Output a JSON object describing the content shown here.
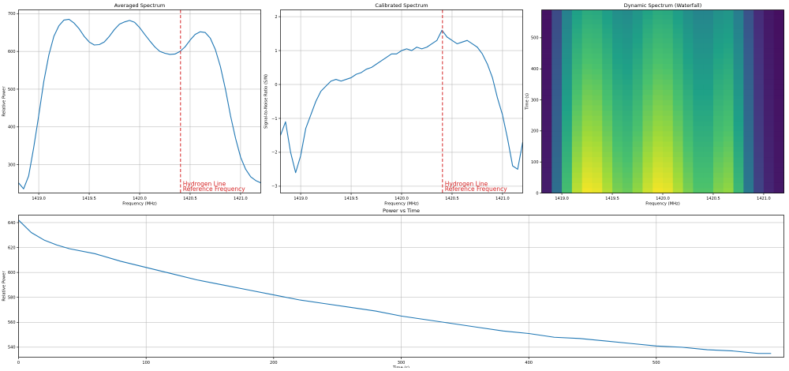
{
  "figure": {
    "background": "#ffffff",
    "line_color": "#1f77b4",
    "ref_color": "#d62728",
    "grid_color": "#b0b0b0"
  },
  "chart_data": [
    {
      "id": "avg",
      "type": "line",
      "title": "Averaged Spectrum",
      "xlabel": "Frequency (MHz)",
      "ylabel": "Relative Power",
      "xlim": [
        1418.8,
        1421.2
      ],
      "ylim": [
        225,
        710
      ],
      "xticks": [
        1419.0,
        1419.5,
        1420.0,
        1420.5,
        1421.0
      ],
      "xtick_labels": [
        "1419.0",
        "1419.5",
        "1420.0",
        "1420.5",
        "1421.0"
      ],
      "yticks": [
        300,
        400,
        500,
        600,
        700
      ],
      "ytick_labels": [
        "300",
        "400",
        "500",
        "600",
        "700"
      ],
      "grid": true,
      "ref_line": {
        "x": 1420.405,
        "label_line1": "Hydrogen Line",
        "label_line2": "Reference Frequency"
      },
      "series": [
        {
          "x": [
            1418.8,
            1418.85,
            1418.9,
            1418.95,
            1419.0,
            1419.05,
            1419.1,
            1419.15,
            1419.2,
            1419.25,
            1419.3,
            1419.35,
            1419.4,
            1419.45,
            1419.5,
            1419.55,
            1419.6,
            1419.65,
            1419.7,
            1419.75,
            1419.8,
            1419.85,
            1419.9,
            1419.95,
            1420.0,
            1420.05,
            1420.1,
            1420.15,
            1420.2,
            1420.25,
            1420.3,
            1420.35,
            1420.4,
            1420.45,
            1420.5,
            1420.55,
            1420.6,
            1420.65,
            1420.7,
            1420.75,
            1420.8,
            1420.85,
            1420.9,
            1420.95,
            1421.0,
            1421.05,
            1421.1,
            1421.15,
            1421.2
          ],
          "y": [
            252,
            236,
            270,
            345,
            430,
            520,
            590,
            640,
            668,
            683,
            685,
            675,
            660,
            640,
            625,
            617,
            618,
            625,
            640,
            658,
            672,
            678,
            682,
            677,
            663,
            645,
            628,
            612,
            600,
            595,
            592,
            593,
            600,
            612,
            630,
            645,
            652,
            650,
            635,
            605,
            560,
            500,
            430,
            370,
            320,
            288,
            268,
            258,
            252
          ]
        }
      ]
    },
    {
      "id": "cal",
      "type": "line",
      "title": "Calibrated Spectrum",
      "xlabel": "Frequency (MHz)",
      "ylabel": "Signal-to-Noise Ratio (S/N)",
      "xlim": [
        1418.8,
        1421.2
      ],
      "ylim": [
        -3.2,
        2.2
      ],
      "xticks": [
        1419.0,
        1419.5,
        1420.0,
        1420.5,
        1421.0
      ],
      "xtick_labels": [
        "1419.0",
        "1419.5",
        "1420.0",
        "1420.5",
        "1421.0"
      ],
      "yticks": [
        -3,
        -2,
        -1,
        0,
        1,
        2
      ],
      "ytick_labels": [
        "−3",
        "−2",
        "−1",
        "0",
        "1",
        "2"
      ],
      "grid": true,
      "ref_line": {
        "x": 1420.405,
        "label_line1": "Hydrogen Line",
        "label_line2": "Reference Frequency"
      },
      "series": [
        {
          "x": [
            1418.8,
            1418.85,
            1418.9,
            1418.95,
            1419.0,
            1419.05,
            1419.1,
            1419.15,
            1419.2,
            1419.25,
            1419.3,
            1419.35,
            1419.4,
            1419.45,
            1419.5,
            1419.55,
            1419.6,
            1419.65,
            1419.7,
            1419.75,
            1419.8,
            1419.85,
            1419.9,
            1419.95,
            1420.0,
            1420.05,
            1420.1,
            1420.15,
            1420.2,
            1420.25,
            1420.3,
            1420.35,
            1420.4,
            1420.45,
            1420.5,
            1420.55,
            1420.6,
            1420.65,
            1420.7,
            1420.75,
            1420.8,
            1420.85,
            1420.9,
            1420.95,
            1421.0,
            1421.05,
            1421.1,
            1421.15,
            1421.2
          ],
          "y": [
            -1.5,
            -1.1,
            -2.0,
            -2.6,
            -2.1,
            -1.3,
            -0.9,
            -0.5,
            -0.2,
            -0.05,
            0.1,
            0.15,
            0.1,
            0.15,
            0.2,
            0.3,
            0.35,
            0.45,
            0.5,
            0.6,
            0.7,
            0.8,
            0.9,
            0.9,
            1.0,
            1.05,
            1.0,
            1.1,
            1.05,
            1.1,
            1.2,
            1.3,
            1.6,
            1.4,
            1.3,
            1.2,
            1.25,
            1.3,
            1.2,
            1.1,
            0.9,
            0.6,
            0.2,
            -0.4,
            -0.9,
            -1.6,
            -2.4,
            -2.5,
            -1.7
          ]
        }
      ]
    },
    {
      "id": "wf",
      "type": "heatmap",
      "title": "Dynamic Spectrum (Waterfall)",
      "xlabel": "Frequency (MHz)",
      "ylabel": "Time (s)",
      "xlim": [
        1418.8,
        1421.2
      ],
      "ylim": [
        0,
        590
      ],
      "xticks": [
        1419.0,
        1419.5,
        1420.0,
        1420.5,
        1421.0
      ],
      "xtick_labels": [
        "1419.0",
        "1419.5",
        "1420.0",
        "1420.5",
        "1421.0"
      ],
      "yticks": [
        0,
        100,
        200,
        300,
        400,
        500
      ],
      "ytick_labels": [
        "0",
        "100",
        "200",
        "300",
        "400",
        "500"
      ],
      "colormap": [
        "#440154",
        "#46327e",
        "#365c8d",
        "#277f8e",
        "#1fa187",
        "#4ac16d",
        "#a0da39",
        "#fde725"
      ],
      "x": [
        1418.8,
        1418.9,
        1419.0,
        1419.1,
        1419.2,
        1419.3,
        1419.4,
        1419.5,
        1419.6,
        1419.7,
        1419.8,
        1419.9,
        1420.0,
        1420.1,
        1420.2,
        1420.3,
        1420.4,
        1420.5,
        1420.6,
        1420.7,
        1420.8,
        1420.9,
        1421.0,
        1421.1,
        1421.2
      ],
      "profile": [
        0.0,
        0.12,
        0.42,
        0.62,
        0.72,
        0.74,
        0.7,
        0.62,
        0.56,
        0.58,
        0.66,
        0.72,
        0.74,
        0.7,
        0.62,
        0.56,
        0.52,
        0.56,
        0.64,
        0.6,
        0.4,
        0.2,
        0.1,
        0.06,
        0.04
      ],
      "time": [
        0,
        100,
        200,
        300,
        400,
        500,
        590
      ],
      "time_factor": [
        1.0,
        0.93,
        0.86,
        0.8,
        0.74,
        0.68,
        0.62
      ]
    },
    {
      "id": "pvt",
      "type": "line",
      "title": "Power vs Time",
      "xlabel": "Time (s)",
      "ylabel": "Relative Power",
      "xlim": [
        0,
        600
      ],
      "ylim": [
        532,
        646
      ],
      "xticks": [
        0,
        100,
        200,
        300,
        400,
        500
      ],
      "xtick_labels": [
        "0",
        "100",
        "200",
        "300",
        "400",
        "500"
      ],
      "yticks": [
        540,
        560,
        580,
        600,
        620,
        640
      ],
      "ytick_labels": [
        "540",
        "560",
        "580",
        "600",
        "620",
        "640"
      ],
      "grid": true,
      "series": [
        {
          "x": [
            0,
            10,
            20,
            30,
            40,
            60,
            80,
            100,
            120,
            140,
            160,
            180,
            200,
            220,
            240,
            260,
            280,
            300,
            320,
            340,
            360,
            380,
            400,
            420,
            440,
            460,
            480,
            500,
            520,
            540,
            560,
            580,
            590
          ],
          "y": [
            642,
            632,
            626,
            622,
            619,
            615,
            609,
            604,
            599,
            594,
            590,
            586,
            582,
            578,
            575,
            572,
            569,
            565,
            562,
            559,
            556,
            553,
            551,
            548,
            547,
            545,
            543,
            541,
            540,
            538,
            537,
            535,
            535
          ]
        }
      ]
    }
  ]
}
